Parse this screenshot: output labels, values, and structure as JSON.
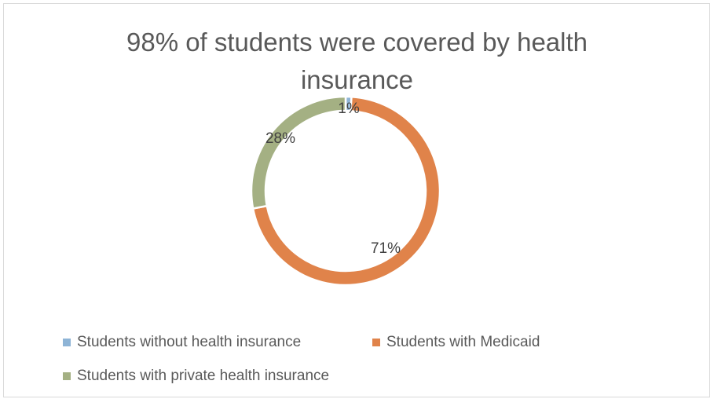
{
  "chart_data": {
    "type": "pie",
    "title": "98% of students were covered by health insurance",
    "title_lines": [
      "98% of students were covered by health",
      "insurance"
    ],
    "categories": [
      "Students without health insurance",
      "Students with Medicaid",
      "Students with private health insurance"
    ],
    "values": [
      1,
      71,
      28
    ],
    "data_labels": [
      "1%",
      "71%",
      "28%"
    ],
    "colors": [
      "#8eb4d6",
      "#e0834a",
      "#a4b083"
    ],
    "style": "doughnut",
    "legend_position": "bottom"
  }
}
